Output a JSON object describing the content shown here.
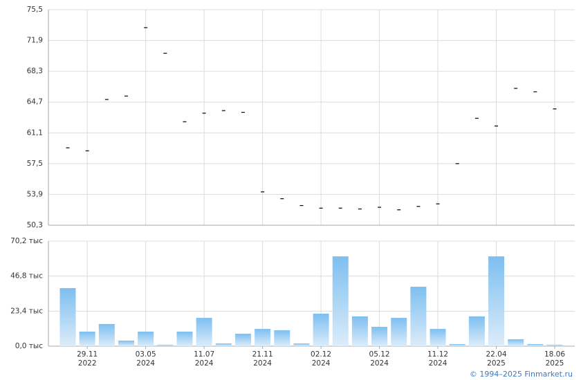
{
  "chart_data": [
    {
      "type": "dash",
      "values": [
        59.35,
        59.0,
        65.0,
        65.4,
        73.4,
        70.4,
        62.4,
        63.4,
        63.7,
        63.5,
        54.2,
        53.4,
        52.6,
        52.3,
        52.3,
        52.2,
        52.4,
        52.1,
        52.5,
        52.8,
        57.5,
        62.8,
        61.9,
        66.3,
        65.9,
        63.9
      ],
      "color": "#000000",
      "ylim": [
        50.3,
        75.5
      ],
      "yticks": [
        {
          "value": 50.3,
          "label": "50,3"
        },
        {
          "value": 53.9,
          "label": "53,9"
        },
        {
          "value": 57.5,
          "label": "57,5"
        },
        {
          "value": 61.1,
          "label": "61,1"
        },
        {
          "value": 64.7,
          "label": "64,7"
        },
        {
          "value": 68.3,
          "label": "68,3"
        },
        {
          "value": 71.9,
          "label": "71,9"
        },
        {
          "value": 75.5,
          "label": "75,5"
        }
      ],
      "grid": true
    },
    {
      "type": "bar",
      "categories": [
        null,
        "29.11",
        null,
        null,
        "03.05",
        null,
        null,
        "11.07",
        null,
        null,
        "21.11",
        null,
        null,
        "02.12",
        null,
        null,
        "05.12",
        null,
        null,
        "11.12",
        null,
        null,
        "22.04",
        null,
        null,
        "18.06"
      ],
      "category_years": [
        null,
        "2022",
        null,
        null,
        "2024",
        null,
        null,
        "2024",
        null,
        null,
        "2024",
        null,
        null,
        "2024",
        null,
        null,
        "2024",
        null,
        null,
        "2024",
        null,
        null,
        "2025",
        null,
        null,
        "2025"
      ],
      "values": [
        38.8,
        9.7,
        14.8,
        3.7,
        9.7,
        0.9,
        9.7,
        18.9,
        1.8,
        8.3,
        11.5,
        10.6,
        1.8,
        21.7,
        60.0,
        19.9,
        12.9,
        18.9,
        39.7,
        11.5,
        1.4,
        19.9,
        60.0,
        4.6,
        1.4,
        0.9
      ],
      "color": "#7dbff0",
      "ylim": [
        0,
        70.2
      ],
      "yticks": [
        {
          "value": 0,
          "label": "0,0 тыс"
        },
        {
          "value": 23.4,
          "label": "23,4 тыс"
        },
        {
          "value": 46.8,
          "label": "46,8 тыс"
        },
        {
          "value": 70.2,
          "label": "70,2 тыс"
        }
      ],
      "grid": true
    }
  ],
  "footer": "© 1994–2025 Finmarket.ru"
}
